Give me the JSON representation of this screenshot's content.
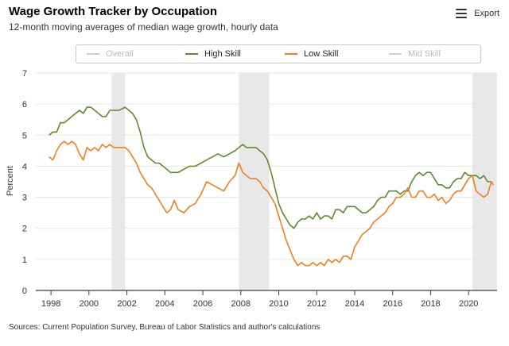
{
  "header": {
    "title": "Wage Growth Tracker by Occupation",
    "subtitle": "12-month moving averages of median wage growth, hourly data",
    "export_label": "Export"
  },
  "footer": {
    "source": "Sources: Current Population Survey, Bureau of Labor Statistics and author's calculations"
  },
  "colors": {
    "high_skill": "#5e8a2e",
    "low_skill": "#f07f1e",
    "legend_off": "#cccccc",
    "recession": "#e8e8e8"
  },
  "chart_data": {
    "type": "line",
    "title": "Wage Growth Tracker by Occupation",
    "subtitle": "12-month moving averages of median wage growth, hourly data",
    "xlabel": "",
    "ylabel": "Percent",
    "xlim": [
      1997.2,
      2021.5
    ],
    "ylim": [
      0,
      7
    ],
    "x_ticks": [
      1998,
      2000,
      2002,
      2004,
      2006,
      2008,
      2010,
      2012,
      2014,
      2016,
      2018,
      2020
    ],
    "y_ticks": [
      0,
      1,
      2,
      3,
      4,
      5,
      6,
      7
    ],
    "grid": "horizontal",
    "legend_position": "top",
    "legend": [
      {
        "name": "Overall",
        "visible": false
      },
      {
        "name": "High Skill",
        "visible": true
      },
      {
        "name": "Low Skill",
        "visible": true
      },
      {
        "name": "Mid Skill",
        "visible": false
      }
    ],
    "recessions": [
      [
        2001.2,
        2001.9
      ],
      [
        2007.9,
        2009.5
      ],
      [
        2020.2,
        2021.5
      ]
    ],
    "series": [
      {
        "name": "High Skill",
        "x": [
          1997.9,
          1998.1,
          1998.3,
          1998.5,
          1998.7,
          1998.9,
          1999.1,
          1999.3,
          1999.5,
          1999.7,
          1999.9,
          2000.1,
          2000.3,
          2000.5,
          2000.7,
          2000.9,
          2001.1,
          2001.3,
          2001.6,
          2001.9,
          2002.1,
          2002.3,
          2002.5,
          2002.7,
          2002.9,
          2003.1,
          2003.3,
          2003.5,
          2003.7,
          2003.9,
          2004.1,
          2004.3,
          2004.5,
          2004.7,
          2005.0,
          2005.3,
          2005.6,
          2005.9,
          2006.2,
          2006.5,
          2006.8,
          2007.1,
          2007.4,
          2007.7,
          2007.9,
          2008.1,
          2008.3,
          2008.5,
          2008.8,
          2009.0,
          2009.2,
          2009.4,
          2009.6,
          2009.8,
          2010.0,
          2010.2,
          2010.4,
          2010.6,
          2010.8,
          2011.0,
          2011.2,
          2011.4,
          2011.6,
          2011.8,
          2012.0,
          2012.2,
          2012.4,
          2012.6,
          2012.8,
          2013.0,
          2013.2,
          2013.4,
          2013.6,
          2013.8,
          2014.0,
          2014.2,
          2014.4,
          2014.6,
          2014.8,
          2015.0,
          2015.2,
          2015.4,
          2015.6,
          2015.8,
          2016.0,
          2016.2,
          2016.4,
          2016.6,
          2016.8,
          2017.0,
          2017.2,
          2017.4,
          2017.6,
          2017.8,
          2018.0,
          2018.2,
          2018.4,
          2018.6,
          2018.8,
          2019.0,
          2019.2,
          2019.4,
          2019.6,
          2019.8,
          2020.0,
          2020.2,
          2020.4,
          2020.6,
          2020.8,
          2021.0,
          2021.2,
          2021.3
        ],
        "values": [
          5.0,
          5.1,
          5.1,
          5.4,
          5.4,
          5.5,
          5.6,
          5.7,
          5.8,
          5.7,
          5.9,
          5.9,
          5.8,
          5.7,
          5.6,
          5.6,
          5.8,
          5.8,
          5.8,
          5.9,
          5.8,
          5.7,
          5.5,
          5.1,
          4.6,
          4.3,
          4.2,
          4.1,
          4.1,
          4.0,
          3.9,
          3.8,
          3.8,
          3.8,
          3.9,
          4.0,
          4.0,
          4.1,
          4.2,
          4.3,
          4.4,
          4.3,
          4.4,
          4.5,
          4.6,
          4.7,
          4.6,
          4.6,
          4.6,
          4.5,
          4.4,
          4.2,
          3.8,
          3.3,
          2.8,
          2.5,
          2.3,
          2.1,
          2.0,
          2.2,
          2.3,
          2.3,
          2.4,
          2.3,
          2.5,
          2.3,
          2.4,
          2.4,
          2.3,
          2.6,
          2.6,
          2.5,
          2.7,
          2.7,
          2.7,
          2.6,
          2.5,
          2.5,
          2.6,
          2.7,
          2.9,
          3.0,
          3.0,
          3.2,
          3.2,
          3.2,
          3.1,
          3.2,
          3.2,
          3.5,
          3.7,
          3.8,
          3.7,
          3.8,
          3.8,
          3.6,
          3.4,
          3.4,
          3.3,
          3.3,
          3.5,
          3.6,
          3.6,
          3.8,
          3.7,
          3.7,
          3.7,
          3.6,
          3.7,
          3.5,
          3.5,
          3.4
        ]
      },
      {
        "name": "Low Skill",
        "x": [
          1997.9,
          1998.1,
          1998.3,
          1998.5,
          1998.7,
          1998.9,
          1999.1,
          1999.3,
          1999.5,
          1999.7,
          1999.9,
          2000.1,
          2000.3,
          2000.5,
          2000.7,
          2000.9,
          2001.1,
          2001.3,
          2001.6,
          2001.9,
          2002.1,
          2002.3,
          2002.5,
          2002.7,
          2002.9,
          2003.1,
          2003.3,
          2003.5,
          2003.7,
          2003.9,
          2004.1,
          2004.3,
          2004.5,
          2004.7,
          2005.0,
          2005.3,
          2005.6,
          2005.9,
          2006.2,
          2006.5,
          2006.8,
          2007.1,
          2007.4,
          2007.7,
          2007.9,
          2008.1,
          2008.3,
          2008.5,
          2008.8,
          2009.0,
          2009.2,
          2009.4,
          2009.6,
          2009.8,
          2010.0,
          2010.2,
          2010.4,
          2010.6,
          2010.8,
          2011.0,
          2011.2,
          2011.4,
          2011.6,
          2011.8,
          2012.0,
          2012.2,
          2012.4,
          2012.6,
          2012.8,
          2013.0,
          2013.2,
          2013.4,
          2013.6,
          2013.8,
          2014.0,
          2014.2,
          2014.4,
          2014.6,
          2014.8,
          2015.0,
          2015.2,
          2015.4,
          2015.6,
          2015.8,
          2016.0,
          2016.2,
          2016.4,
          2016.6,
          2016.8,
          2017.0,
          2017.2,
          2017.4,
          2017.6,
          2017.8,
          2018.0,
          2018.2,
          2018.4,
          2018.6,
          2018.8,
          2019.0,
          2019.2,
          2019.4,
          2019.6,
          2019.8,
          2020.0,
          2020.2,
          2020.4,
          2020.6,
          2020.8,
          2021.0,
          2021.2,
          2021.3
        ],
        "values": [
          4.3,
          4.2,
          4.5,
          4.7,
          4.8,
          4.7,
          4.8,
          4.7,
          4.4,
          4.2,
          4.6,
          4.5,
          4.6,
          4.5,
          4.7,
          4.6,
          4.7,
          4.6,
          4.6,
          4.6,
          4.5,
          4.3,
          4.1,
          3.8,
          3.6,
          3.4,
          3.3,
          3.1,
          2.9,
          2.7,
          2.5,
          2.6,
          2.9,
          2.6,
          2.5,
          2.7,
          2.8,
          3.1,
          3.5,
          3.4,
          3.3,
          3.2,
          3.5,
          3.7,
          4.1,
          3.8,
          3.7,
          3.6,
          3.6,
          3.5,
          3.3,
          3.2,
          3.0,
          2.8,
          2.4,
          2.0,
          1.6,
          1.3,
          1.0,
          0.8,
          0.9,
          0.8,
          0.8,
          0.9,
          0.8,
          0.9,
          0.8,
          1.0,
          0.9,
          1.0,
          0.9,
          1.1,
          1.1,
          1.0,
          1.4,
          1.6,
          1.8,
          1.9,
          2.0,
          2.2,
          2.3,
          2.4,
          2.5,
          2.7,
          2.8,
          3.0,
          3.0,
          3.1,
          3.3,
          3.0,
          3.0,
          3.2,
          3.2,
          3.0,
          3.0,
          3.1,
          2.9,
          3.0,
          2.8,
          2.9,
          3.1,
          3.2,
          3.2,
          3.4,
          3.6,
          3.7,
          3.2,
          3.1,
          3.0,
          3.1,
          3.5,
          3.4
        ]
      }
    ]
  }
}
